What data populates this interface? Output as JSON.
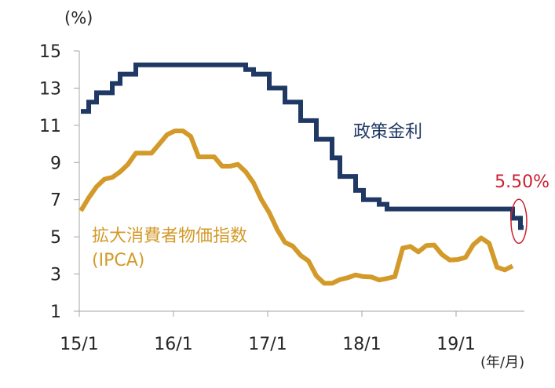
{
  "chart_data": {
    "type": "line",
    "y_unit_label": "(%)",
    "x_unit_label": "(年/月)",
    "ylim": [
      1,
      15
    ],
    "y_ticks": [
      1,
      3,
      5,
      7,
      9,
      11,
      13,
      15
    ],
    "y_tick_labels": [
      "1",
      "3",
      "5",
      "7",
      "9",
      "11",
      "13",
      "15"
    ],
    "x_range": [
      "2015-01",
      "2019-09"
    ],
    "x_ticks": [
      "2015-01",
      "2016-01",
      "2017-01",
      "2018-01",
      "2019-01"
    ],
    "x_tick_labels": [
      "15/1",
      "16/1",
      "17/1",
      "18/1",
      "19/1"
    ],
    "grid": false,
    "series": [
      {
        "name": "政策金利",
        "color": "#1f3864",
        "step": true,
        "points": [
          [
            "2015-01",
            11.75
          ],
          [
            "2015-02",
            12.25
          ],
          [
            "2015-03",
            12.75
          ],
          [
            "2015-04",
            12.75
          ],
          [
            "2015-05",
            13.25
          ],
          [
            "2015-06",
            13.75
          ],
          [
            "2015-07",
            13.75
          ],
          [
            "2015-08",
            14.25
          ],
          [
            "2015-09",
            14.25
          ],
          [
            "2015-10",
            14.25
          ],
          [
            "2015-11",
            14.25
          ],
          [
            "2015-12",
            14.25
          ],
          [
            "2016-01",
            14.25
          ],
          [
            "2016-02",
            14.25
          ],
          [
            "2016-03",
            14.25
          ],
          [
            "2016-04",
            14.25
          ],
          [
            "2016-05",
            14.25
          ],
          [
            "2016-06",
            14.25
          ],
          [
            "2016-07",
            14.25
          ],
          [
            "2016-08",
            14.25
          ],
          [
            "2016-09",
            14.25
          ],
          [
            "2016-10",
            14.0
          ],
          [
            "2016-11",
            13.75
          ],
          [
            "2016-12",
            13.75
          ],
          [
            "2017-01",
            13.0
          ],
          [
            "2017-02",
            13.0
          ],
          [
            "2017-03",
            12.25
          ],
          [
            "2017-04",
            12.25
          ],
          [
            "2017-05",
            11.25
          ],
          [
            "2017-06",
            11.25
          ],
          [
            "2017-07",
            10.25
          ],
          [
            "2017-08",
            10.25
          ],
          [
            "2017-09",
            9.25
          ],
          [
            "2017-10",
            8.25
          ],
          [
            "2017-11",
            8.25
          ],
          [
            "2017-12",
            7.5
          ],
          [
            "2018-01",
            7.0
          ],
          [
            "2018-02",
            7.0
          ],
          [
            "2018-03",
            6.75
          ],
          [
            "2018-04",
            6.5
          ],
          [
            "2018-05",
            6.5
          ],
          [
            "2018-06",
            6.5
          ],
          [
            "2018-07",
            6.5
          ],
          [
            "2018-08",
            6.5
          ],
          [
            "2018-09",
            6.5
          ],
          [
            "2018-10",
            6.5
          ],
          [
            "2018-11",
            6.5
          ],
          [
            "2018-12",
            6.5
          ],
          [
            "2019-01",
            6.5
          ],
          [
            "2019-02",
            6.5
          ],
          [
            "2019-03",
            6.5
          ],
          [
            "2019-04",
            6.5
          ],
          [
            "2019-05",
            6.5
          ],
          [
            "2019-06",
            6.5
          ],
          [
            "2019-07",
            6.5
          ],
          [
            "2019-08",
            6.0
          ],
          [
            "2019-09",
            5.5
          ]
        ]
      },
      {
        "name": "拡大消費者物価指数\n(IPCA)",
        "color": "#d39a2a",
        "step": false,
        "points": [
          [
            "2015-01",
            6.4
          ],
          [
            "2015-02",
            7.1
          ],
          [
            "2015-03",
            7.7
          ],
          [
            "2015-04",
            8.1
          ],
          [
            "2015-05",
            8.2
          ],
          [
            "2015-06",
            8.5
          ],
          [
            "2015-07",
            8.9
          ],
          [
            "2015-08",
            9.5
          ],
          [
            "2015-09",
            9.5
          ],
          [
            "2015-10",
            9.5
          ],
          [
            "2015-11",
            10.0
          ],
          [
            "2015-12",
            10.5
          ],
          [
            "2016-01",
            10.7
          ],
          [
            "2016-02",
            10.7
          ],
          [
            "2016-03",
            10.4
          ],
          [
            "2016-04",
            9.3
          ],
          [
            "2016-05",
            9.3
          ],
          [
            "2016-06",
            9.3
          ],
          [
            "2016-07",
            8.8
          ],
          [
            "2016-08",
            8.8
          ],
          [
            "2016-09",
            8.9
          ],
          [
            "2016-10",
            8.5
          ],
          [
            "2016-11",
            7.9
          ],
          [
            "2016-12",
            7.0
          ],
          [
            "2017-01",
            6.3
          ],
          [
            "2017-02",
            5.4
          ],
          [
            "2017-03",
            4.7
          ],
          [
            "2017-04",
            4.5
          ],
          [
            "2017-05",
            4.0
          ],
          [
            "2017-06",
            3.7
          ],
          [
            "2017-07",
            2.9
          ],
          [
            "2017-08",
            2.5
          ],
          [
            "2017-09",
            2.5
          ],
          [
            "2017-10",
            2.7
          ],
          [
            "2017-11",
            2.8
          ],
          [
            "2017-12",
            2.95
          ],
          [
            "2018-01",
            2.86
          ],
          [
            "2018-02",
            2.84
          ],
          [
            "2018-03",
            2.68
          ],
          [
            "2018-04",
            2.76
          ],
          [
            "2018-05",
            2.86
          ],
          [
            "2018-06",
            4.39
          ],
          [
            "2018-07",
            4.48
          ],
          [
            "2018-08",
            4.19
          ],
          [
            "2018-09",
            4.53
          ],
          [
            "2018-10",
            4.56
          ],
          [
            "2018-11",
            4.05
          ],
          [
            "2018-12",
            3.75
          ],
          [
            "2019-01",
            3.78
          ],
          [
            "2019-02",
            3.89
          ],
          [
            "2019-03",
            4.58
          ],
          [
            "2019-04",
            4.94
          ],
          [
            "2019-05",
            4.66
          ],
          [
            "2019-06",
            3.37
          ],
          [
            "2019-07",
            3.22
          ],
          [
            "2019-08",
            3.43
          ]
        ]
      }
    ],
    "annotations": [
      {
        "text": "5.50%",
        "color": "#cc1f2f",
        "series": "政策金利",
        "point": [
          "2019-09",
          5.5
        ],
        "circled": true
      }
    ]
  }
}
